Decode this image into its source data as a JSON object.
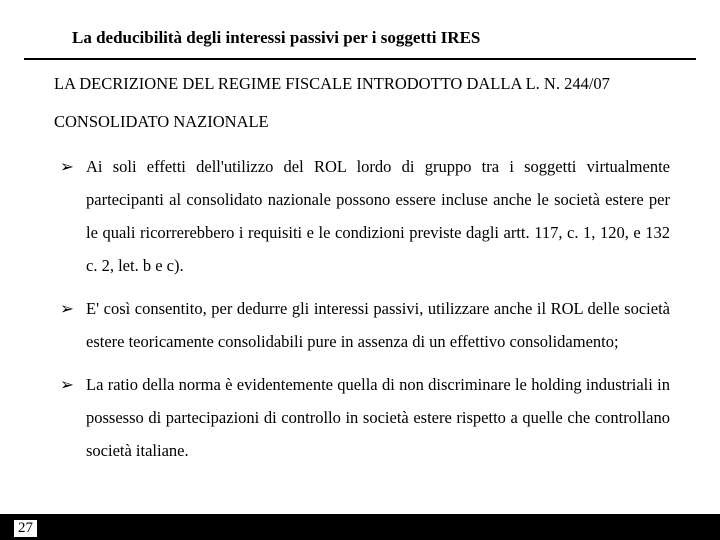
{
  "colors": {
    "background": "#ffffff",
    "text": "#000000",
    "rule": "#000000",
    "footer_bar": "#000000"
  },
  "typography": {
    "title_fontsize_pt": 13,
    "body_fontsize_pt": 12.5,
    "line_height": 2.0,
    "font_family": "Times New Roman"
  },
  "header": {
    "title": "La deducibilità degli interessi passivi per i soggetti IRES"
  },
  "subtitle": "LA DECRIZIONE DEL REGIME FISCALE INTRODOTTO DALLA L. N. 244/07",
  "section": "CONSOLIDATO NAZIONALE",
  "bullet_marker": "➢",
  "bullets": [
    "Ai soli effetti dell'utilizzo del ROL lordo di gruppo tra i soggetti virtualmente partecipanti al consolidato nazionale possono essere incluse anche le società estere per le quali ricorrerebbero i requisiti e le condizioni previste dagli artt. 117, c. 1, 120, e 132 c. 2, let. b e c).",
    "E' così consentito, per dedurre gli interessi passivi, utilizzare anche il ROL delle società estere teoricamente consolidabili pure in assenza di un effettivo consolidamento;",
    "La ratio della norma è evidentemente quella di non discriminare le holding industriali in possesso di partecipazioni di controllo in società estere rispetto a quelle che controllano società italiane."
  ],
  "page_number": "27"
}
